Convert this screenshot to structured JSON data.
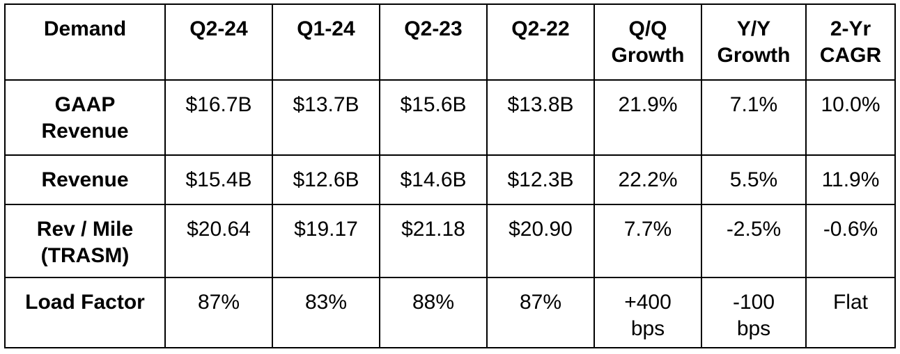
{
  "table": {
    "header": [
      "Demand",
      "Q2-24",
      "Q1-24",
      "Q2-23",
      "Q2-22",
      [
        "Q/Q",
        "Growth"
      ],
      [
        "Y/Y",
        "Growth"
      ],
      [
        "2-Yr",
        "CAGR"
      ]
    ],
    "rows": [
      [
        [
          "GAAP",
          "Revenue"
        ],
        "$16.7B",
        "$13.7B",
        "$15.6B",
        "$13.8B",
        "21.9%",
        "7.1%",
        "10.0%"
      ],
      [
        "Revenue",
        "$15.4B",
        "$12.6B",
        "$14.6B",
        "$12.3B",
        "22.2%",
        "5.5%",
        "11.9%"
      ],
      [
        [
          "Rev / Mile",
          "(TRASM)"
        ],
        "$20.64",
        "$19.17",
        "$21.18",
        "$20.90",
        "7.7%",
        "-2.5%",
        "-0.6%"
      ],
      [
        "Load Factor",
        "87%",
        "83%",
        "88%",
        "87%",
        [
          "+400",
          "bps"
        ],
        [
          "-100",
          "bps"
        ],
        "Flat"
      ]
    ]
  }
}
